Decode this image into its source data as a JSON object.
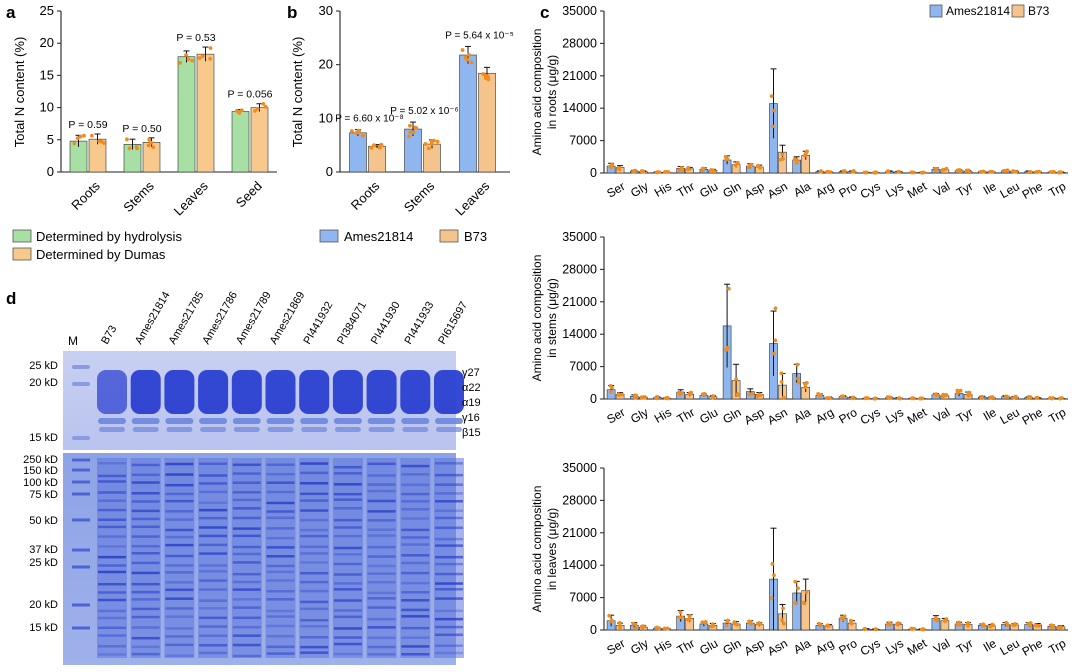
{
  "colors": {
    "green": "#a8dfa4",
    "orange": "#f8c98c",
    "blue": "#8fb6ef",
    "tan": "#f5c48d",
    "dot": "#f08c1e",
    "gel_blue": "#2a3fd0",
    "gel_light": "#6d86de"
  },
  "chart_data": [
    {
      "panel": "a",
      "type": "bar",
      "ylabel": "Total N content (%)",
      "ylim": [
        0,
        25
      ],
      "yticks": [
        0,
        5,
        10,
        15,
        20,
        25
      ],
      "categories": [
        "Roots",
        "Stems",
        "Leaves",
        "Seed"
      ],
      "series": [
        {
          "name": "Determined by hydrolysis",
          "values": [
            4.8,
            4.3,
            17.9,
            9.4
          ],
          "errors": [
            0.9,
            0.8,
            0.9,
            0.3
          ]
        },
        {
          "name": "Determined by Dumas",
          "values": [
            5.1,
            4.6,
            18.3,
            10.0
          ],
          "errors": [
            0.8,
            0.7,
            1.1,
            0.6
          ]
        }
      ],
      "pvalues": [
        "P = 0.59",
        "P = 0.50",
        "P = 0.53",
        "P = 0.056"
      ],
      "legend": [
        "Determined by hydrolysis",
        "Determined by Dumas"
      ]
    },
    {
      "panel": "b",
      "type": "bar",
      "ylabel": "Total N content (%)",
      "ylim": [
        0,
        30
      ],
      "yticks": [
        0,
        10,
        20,
        30
      ],
      "categories": [
        "Roots",
        "Stems",
        "Leaves"
      ],
      "series": [
        {
          "name": "Ames21814",
          "values": [
            7.3,
            8.0,
            21.8
          ],
          "errors": [
            0.6,
            1.3,
            1.6
          ]
        },
        {
          "name": "B73",
          "values": [
            4.8,
            5.2,
            18.4
          ],
          "errors": [
            0.3,
            0.8,
            1.1
          ]
        }
      ],
      "pvalues": [
        "P = 6.60 x 10⁻⁸",
        "P = 5.02 x 10⁻⁶",
        "P = 5.64 x 10⁻⁵"
      ],
      "legend": [
        "Ames21814",
        "B73"
      ]
    },
    {
      "panel": "c",
      "type": "bar",
      "legend": [
        "Ames21814",
        "B73"
      ],
      "categories": [
        "Ser",
        "Gly",
        "His",
        "Thr",
        "Glu",
        "Gln",
        "Asp",
        "Asn",
        "Ala",
        "Arg",
        "Pro",
        "Cys",
        "Lys",
        "Met",
        "Val",
        "Tyr",
        "Ile",
        "Leu",
        "Phe",
        "Trp"
      ],
      "ylim": [
        0,
        35000
      ],
      "yticks": [
        "0",
        "7000",
        "14000",
        "21000",
        "28000",
        "35000"
      ],
      "subplots": [
        {
          "ylabel_line1": "Amino acid composition",
          "ylabel_line2": "in roots (μg/g)",
          "series": [
            {
              "name": "Ames21814",
              "values": [
                1500,
                400,
                200,
                1000,
                800,
                2800,
                1500,
                15000,
                2800,
                300,
                300,
                100,
                300,
                100,
                800,
                500,
                300,
                500,
                300,
                200
              ],
              "errors": [
                600,
                200,
                100,
                400,
                300,
                900,
                500,
                7500,
                700,
                150,
                150,
                50,
                150,
                50,
                300,
                200,
                150,
                200,
                150,
                100
              ]
            },
            {
              "name": "B73",
              "values": [
                1200,
                300,
                150,
                900,
                600,
                1800,
                1300,
                4500,
                3800,
                250,
                300,
                100,
                250,
                100,
                700,
                400,
                250,
                400,
                250,
                150
              ],
              "errors": [
                400,
                150,
                80,
                300,
                200,
                600,
                400,
                1500,
                900,
                100,
                150,
                50,
                100,
                50,
                250,
                150,
                100,
                150,
                100,
                80
              ]
            }
          ]
        },
        {
          "ylabel_line1": "Amino acid composition",
          "ylabel_line2": "in stems (μg/g)",
          "series": [
            {
              "name": "Ames21814",
              "values": [
                2000,
                600,
                300,
                1500,
                800,
                15800,
                1600,
                12000,
                5500,
                800,
                500,
                150,
                300,
                150,
                900,
                1200,
                400,
                500,
                300,
                200
              ],
              "errors": [
                900,
                300,
                150,
                500,
                300,
                9000,
                600,
                7000,
                2000,
                300,
                200,
                80,
                150,
                80,
                300,
                600,
                200,
                200,
                150,
                100
              ]
            },
            {
              "name": "B73",
              "values": [
                1000,
                400,
                200,
                1000,
                500,
                4000,
                1000,
                3000,
                2500,
                300,
                300,
                100,
                200,
                100,
                700,
                1000,
                300,
                400,
                200,
                150
              ],
              "errors": [
                400,
                200,
                100,
                400,
                200,
                3500,
                400,
                2500,
                1000,
                150,
                150,
                50,
                100,
                50,
                250,
                500,
                150,
                150,
                100,
                80
              ]
            }
          ]
        },
        {
          "ylabel_line1": "Amino acid composition",
          "ylabel_line2": "in leaves (μg/g)",
          "series": [
            {
              "name": "Ames21814",
              "values": [
                2000,
                1000,
                400,
                3000,
                1300,
                1500,
                1500,
                11000,
                8000,
                1000,
                2500,
                200,
                1300,
                200,
                2500,
                1300,
                1000,
                1200,
                1200,
                800
              ],
              "errors": [
                1200,
                600,
                200,
                1200,
                500,
                600,
                500,
                11000,
                2500,
                400,
                700,
                100,
                400,
                100,
                600,
                400,
                300,
                400,
                400,
                300
              ]
            },
            {
              "name": "B73",
              "values": [
                1000,
                600,
                300,
                2500,
                1000,
                1300,
                1200,
                3500,
                8500,
                900,
                1500,
                150,
                1200,
                150,
                2000,
                1200,
                900,
                1100,
                1100,
                700
              ],
              "errors": [
                500,
                300,
                150,
                800,
                400,
                500,
                400,
                2000,
                2500,
                300,
                500,
                80,
                300,
                80,
                500,
                400,
                300,
                300,
                300,
                250
              ]
            }
          ]
        }
      ]
    }
  ],
  "panels": {
    "a": "a",
    "b": "b",
    "c": "c",
    "d": "d"
  },
  "gel": {
    "marker": "M",
    "lanes": [
      "B73",
      "Ames21814",
      "Ames21785",
      "Ames21786",
      "Ames21789",
      "Ames21869",
      "PI441932",
      "PI384071",
      "PI441930",
      "PI441933",
      "PI615697"
    ],
    "top_kd": [
      "25 kD",
      "20 kD",
      "15 kD"
    ],
    "zeins": [
      "γ27",
      "α22",
      "α19",
      "γ16",
      "β15"
    ],
    "bottom_kd": [
      "250 kD",
      "150 kD",
      "100 kD",
      "75 kD",
      "50 kD",
      "37 kD",
      "25 kD",
      "20 kD",
      "15 kD"
    ]
  }
}
